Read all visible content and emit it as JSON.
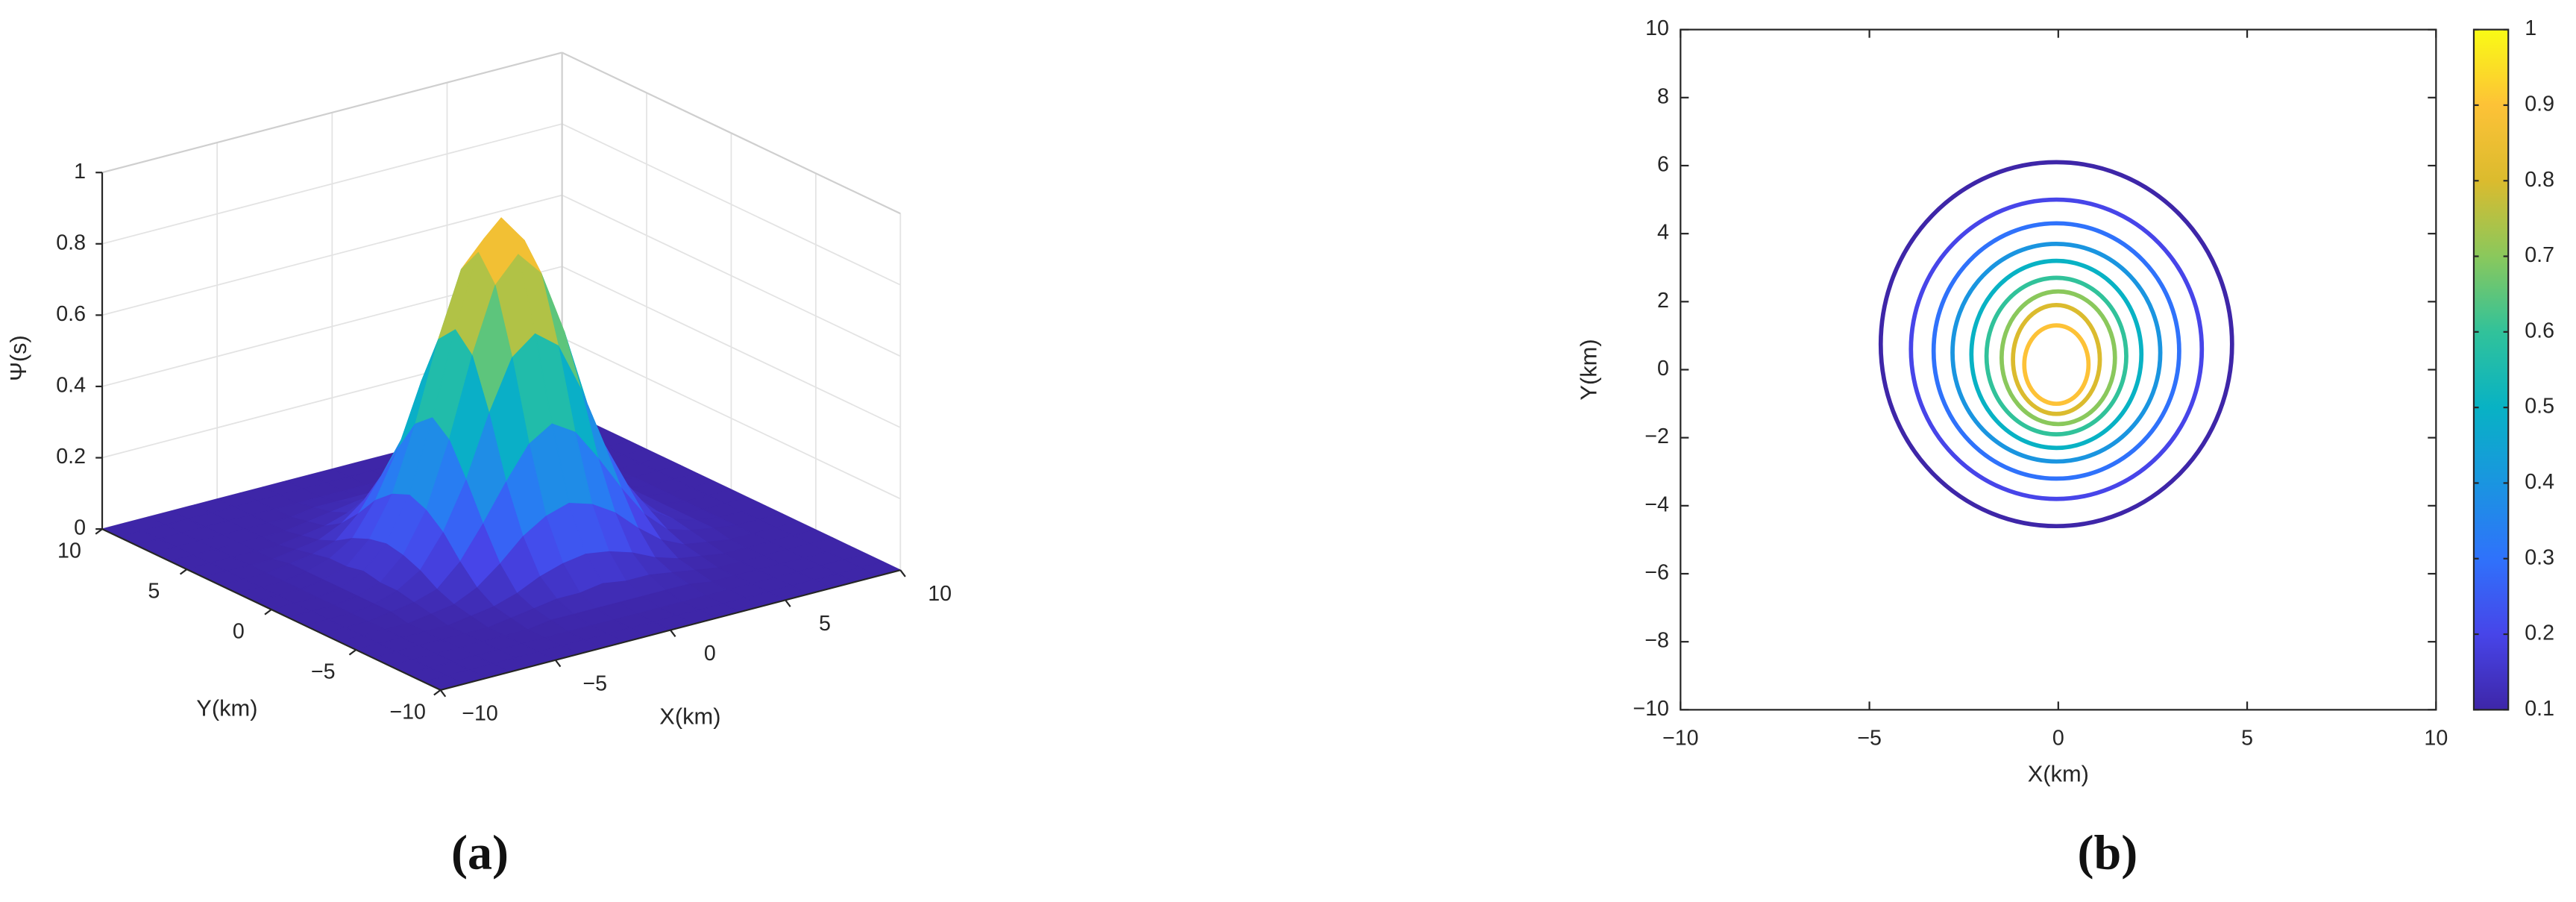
{
  "chart_data": [
    {
      "type": "surface",
      "xlabel": "X(km)",
      "ylabel": "Y(km)",
      "zlabel": "Ψ(s)",
      "caption": "(a)",
      "x": [
        -10,
        -9,
        -8,
        -7,
        -6,
        -5,
        -4,
        -3,
        -2,
        -1,
        0,
        1,
        2,
        3,
        4,
        5,
        6,
        7,
        8,
        9,
        10
      ],
      "y": [
        -10,
        -9,
        -8,
        -7,
        -6,
        -5,
        -4,
        -3,
        -2,
        -1,
        0,
        1,
        2,
        3,
        4,
        5,
        6,
        7,
        8,
        9,
        10
      ],
      "z": [
        [
          0,
          0,
          0,
          0,
          0,
          0,
          0,
          0,
          0,
          0,
          0,
          0,
          0,
          0,
          0,
          0,
          0,
          0,
          0,
          0,
          0
        ],
        [
          0,
          0,
          0,
          0,
          0,
          0,
          0,
          0,
          0,
          0,
          0,
          0,
          0,
          0,
          0,
          0,
          0,
          0,
          0,
          0,
          0
        ],
        [
          0,
          0,
          0,
          0,
          0,
          0,
          0,
          0,
          0,
          0,
          0,
          0,
          0,
          0,
          0,
          0,
          0,
          0,
          0,
          0,
          0
        ],
        [
          0,
          0,
          0,
          0,
          0,
          0,
          0,
          0.01,
          0.01,
          0.01,
          0.01,
          0.01,
          0.01,
          0.01,
          0,
          0,
          0,
          0,
          0,
          0,
          0
        ],
        [
          0,
          0,
          0,
          0,
          0,
          0,
          0.01,
          0.02,
          0.03,
          0.03,
          0.04,
          0.03,
          0.03,
          0.02,
          0.01,
          0,
          0,
          0,
          0,
          0,
          0
        ],
        [
          0,
          0,
          0,
          0,
          0,
          0.01,
          0.02,
          0.04,
          0.07,
          0.09,
          0.1,
          0.09,
          0.07,
          0.04,
          0.02,
          0.01,
          0,
          0,
          0,
          0,
          0
        ],
        [
          0,
          0,
          0,
          0,
          0.01,
          0.02,
          0.05,
          0.1,
          0.16,
          0.2,
          0.22,
          0.2,
          0.16,
          0.1,
          0.05,
          0.02,
          0.01,
          0,
          0,
          0,
          0
        ],
        [
          0,
          0,
          0,
          0.01,
          0.02,
          0.04,
          0.1,
          0.19,
          0.29,
          0.38,
          0.42,
          0.38,
          0.29,
          0.19,
          0.1,
          0.04,
          0.02,
          0.01,
          0,
          0,
          0
        ],
        [
          0,
          0,
          0,
          0.01,
          0.03,
          0.07,
          0.16,
          0.29,
          0.46,
          0.6,
          0.65,
          0.6,
          0.46,
          0.29,
          0.16,
          0.07,
          0.03,
          0.01,
          0,
          0,
          0
        ],
        [
          0,
          0,
          0,
          0.01,
          0.03,
          0.09,
          0.2,
          0.38,
          0.6,
          0.78,
          0.85,
          0.78,
          0.6,
          0.38,
          0.2,
          0.09,
          0.03,
          0.01,
          0,
          0,
          0
        ],
        [
          0,
          0,
          0,
          0.01,
          0.04,
          0.1,
          0.22,
          0.42,
          0.65,
          0.85,
          0.93,
          0.85,
          0.65,
          0.42,
          0.22,
          0.1,
          0.04,
          0.01,
          0,
          0,
          0
        ],
        [
          0,
          0,
          0,
          0.01,
          0.03,
          0.09,
          0.2,
          0.38,
          0.6,
          0.78,
          0.85,
          0.78,
          0.6,
          0.38,
          0.2,
          0.09,
          0.03,
          0.01,
          0,
          0,
          0
        ],
        [
          0,
          0,
          0,
          0.01,
          0.03,
          0.07,
          0.16,
          0.29,
          0.46,
          0.6,
          0.65,
          0.6,
          0.46,
          0.29,
          0.16,
          0.07,
          0.03,
          0.01,
          0,
          0,
          0
        ],
        [
          0,
          0,
          0,
          0.01,
          0.02,
          0.04,
          0.1,
          0.19,
          0.29,
          0.38,
          0.42,
          0.38,
          0.29,
          0.19,
          0.1,
          0.04,
          0.02,
          0.01,
          0,
          0,
          0
        ],
        [
          0,
          0,
          0,
          0,
          0.01,
          0.02,
          0.05,
          0.1,
          0.16,
          0.2,
          0.22,
          0.2,
          0.16,
          0.1,
          0.05,
          0.02,
          0.01,
          0,
          0,
          0,
          0
        ],
        [
          0,
          0,
          0,
          0,
          0,
          0.01,
          0.02,
          0.04,
          0.07,
          0.09,
          0.1,
          0.09,
          0.07,
          0.04,
          0.02,
          0.01,
          0,
          0,
          0,
          0,
          0
        ],
        [
          0,
          0,
          0,
          0,
          0,
          0,
          0.01,
          0.02,
          0.03,
          0.03,
          0.04,
          0.03,
          0.03,
          0.02,
          0.01,
          0,
          0,
          0,
          0,
          0,
          0
        ],
        [
          0,
          0,
          0,
          0,
          0,
          0,
          0,
          0.01,
          0.01,
          0.01,
          0.01,
          0.01,
          0.01,
          0.01,
          0,
          0,
          0,
          0,
          0,
          0,
          0
        ],
        [
          0,
          0,
          0,
          0,
          0,
          0,
          0,
          0,
          0,
          0,
          0,
          0,
          0,
          0,
          0,
          0,
          0,
          0,
          0,
          0,
          0
        ],
        [
          0,
          0,
          0,
          0,
          0,
          0,
          0,
          0,
          0,
          0,
          0,
          0,
          0,
          0,
          0,
          0,
          0,
          0,
          0,
          0,
          0
        ],
        [
          0,
          0,
          0,
          0,
          0,
          0,
          0,
          0,
          0,
          0,
          0,
          0,
          0,
          0,
          0,
          0,
          0,
          0,
          0,
          0,
          0
        ]
      ],
      "xlim": [
        -10,
        10
      ],
      "ylim": [
        -10,
        10
      ],
      "zlim": [
        0,
        1
      ],
      "xticks": [
        {
          "value": -10,
          "label": "−10"
        },
        {
          "value": -5,
          "label": "−5"
        },
        0,
        5,
        10
      ],
      "yticks": [
        {
          "value": -10,
          "label": "−10"
        },
        {
          "value": -5,
          "label": "−5"
        },
        0,
        5,
        10
      ],
      "zticks": [
        0,
        0.2,
        0.4,
        0.6,
        0.8,
        1
      ],
      "grid": true,
      "colormap": [
        "#3e26a8",
        "#4745e9",
        "#2f72fb",
        "#1a95e0",
        "#08b2c4",
        "#31c29a",
        "#8ac85c",
        "#dbbb2e",
        "#fdc237",
        "#f9fb15"
      ]
    },
    {
      "type": "contour",
      "xlabel": "X(km)",
      "ylabel": "Y(km)",
      "caption": "(b)",
      "xlim": [
        -10,
        10
      ],
      "ylim": [
        -10,
        10
      ],
      "xticks": [
        {
          "value": -10,
          "label": "−10"
        },
        {
          "value": -5,
          "label": "−5"
        },
        0,
        5,
        10
      ],
      "yticks": [
        {
          "value": -10,
          "label": "−10"
        },
        {
          "value": -8,
          "label": "−8"
        },
        {
          "value": -6,
          "label": "−6"
        },
        {
          "value": -4,
          "label": "−4"
        },
        {
          "value": -2,
          "label": "−2"
        },
        0,
        2,
        4,
        6,
        8,
        10
      ],
      "contours": [
        {
          "level": 0.1,
          "xmin": -4.7,
          "xmax": 4.6,
          "ymin": -4.6,
          "ymax": 6.1
        },
        {
          "level": 0.2,
          "xmin": -3.9,
          "xmax": 3.8,
          "ymin": -3.8,
          "ymax": 5.0
        },
        {
          "level": 0.3,
          "xmin": -3.3,
          "xmax": 3.2,
          "ymin": -3.2,
          "ymax": 4.3
        },
        {
          "level": 0.4,
          "xmin": -2.8,
          "xmax": 2.7,
          "ymin": -2.7,
          "ymax": 3.7
        },
        {
          "level": 0.5,
          "xmin": -2.3,
          "xmax": 2.2,
          "ymin": -2.3,
          "ymax": 3.2
        },
        {
          "level": 0.6,
          "xmin": -1.9,
          "xmax": 1.8,
          "ymin": -1.9,
          "ymax": 2.7
        },
        {
          "level": 0.7,
          "xmin": -1.5,
          "xmax": 1.5,
          "ymin": -1.6,
          "ymax": 2.3
        },
        {
          "level": 0.8,
          "xmin": -1.2,
          "xmax": 1.1,
          "ymin": -1.3,
          "ymax": 1.9
        },
        {
          "level": 0.9,
          "xmin": -0.9,
          "xmax": 0.8,
          "ymin": -1.0,
          "ymax": 1.3
        }
      ],
      "colorbar": {
        "clim": [
          0.1,
          1
        ],
        "ticks": [
          0.1,
          0.2,
          0.3,
          0.4,
          0.5,
          0.6,
          0.7,
          0.8,
          0.9,
          1
        ]
      },
      "colormap": [
        "#3e26a8",
        "#4745e9",
        "#2f72fb",
        "#1a95e0",
        "#08b2c4",
        "#31c29a",
        "#8ac85c",
        "#dbbb2e",
        "#fdc237",
        "#f9fb15"
      ]
    }
  ]
}
